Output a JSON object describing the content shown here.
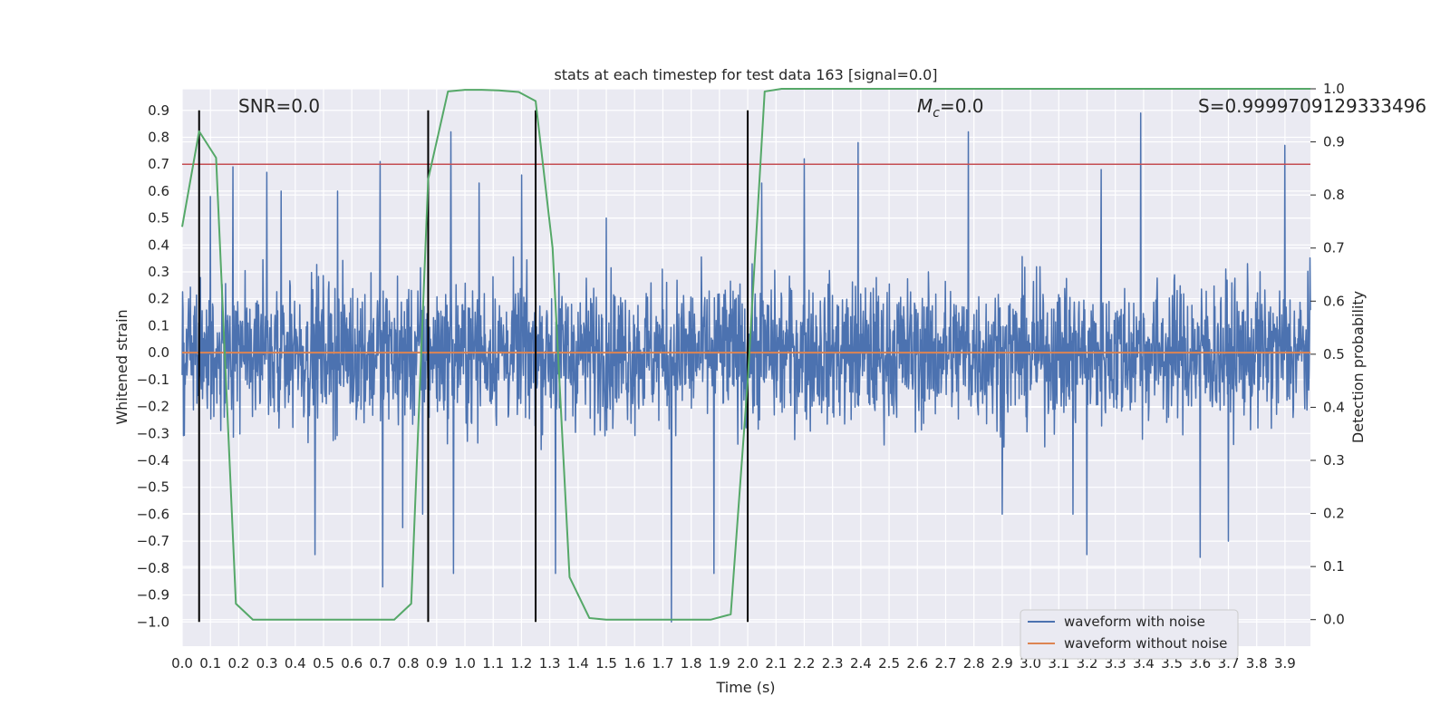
{
  "chart_data": {
    "type": "line",
    "title": "stats at each timestep for test data 163 [signal=0.0]",
    "xlabel": "Time (s)",
    "ylabel_left": "Whitened strain",
    "ylabel_right": "Detection probability",
    "xlim": [
      0.0,
      3.99
    ],
    "ylim_left": [
      -1.09,
      0.98
    ],
    "ylim_right": [
      -0.05,
      1.0
    ],
    "x_ticks": [
      "0.0",
      "0.1",
      "0.2",
      "0.3",
      "0.4",
      "0.5",
      "0.6",
      "0.7",
      "0.8",
      "0.9",
      "1.0",
      "1.1",
      "1.2",
      "1.3",
      "1.4",
      "1.5",
      "1.6",
      "1.7",
      "1.8",
      "1.9",
      "2.0",
      "2.1",
      "2.2",
      "2.3",
      "2.4",
      "2.5",
      "2.6",
      "2.7",
      "2.8",
      "2.9",
      "3.0",
      "3.1",
      "3.2",
      "3.3",
      "3.4",
      "3.5",
      "3.6",
      "3.7",
      "3.8",
      "3.9"
    ],
    "y_left_ticks": [
      "−1.0",
      "−0.9",
      "−0.8",
      "−0.7",
      "−0.6",
      "−0.5",
      "−0.4",
      "−0.3",
      "−0.2",
      "−0.1",
      "0.0",
      "0.1",
      "0.2",
      "0.3",
      "0.4",
      "0.5",
      "0.6",
      "0.7",
      "0.8",
      "0.9"
    ],
    "y_right_ticks": [
      "0.0",
      "0.1",
      "0.2",
      "0.3",
      "0.4",
      "0.5",
      "0.6",
      "0.7",
      "0.8",
      "0.9",
      "1.0"
    ],
    "grid": true,
    "legend_placement": "lower-right",
    "threshold_line_left": 0.7,
    "vertical_markers": [
      0.06,
      0.87,
      1.25,
      2.0
    ],
    "annotations": {
      "snr": "SNR=0.0",
      "mc_symbol": "M",
      "mc_sub": "c",
      "mc_value": "=0.0",
      "s": "S=0.9999709129333496"
    },
    "series": [
      {
        "name": "waveform with noise",
        "axis": "left",
        "color": "#4c72b0",
        "style": "noise",
        "amplitude_typical": 0.13,
        "spikes": [
          [
            0.1,
            0.58
          ],
          [
            0.18,
            0.69
          ],
          [
            0.3,
            0.67
          ],
          [
            0.35,
            0.6
          ],
          [
            0.47,
            -0.75
          ],
          [
            0.55,
            0.6
          ],
          [
            0.7,
            0.71
          ],
          [
            0.71,
            -0.87
          ],
          [
            0.78,
            -0.65
          ],
          [
            0.85,
            -0.6
          ],
          [
            0.95,
            0.82
          ],
          [
            0.96,
            -0.82
          ],
          [
            1.05,
            0.63
          ],
          [
            1.2,
            0.66
          ],
          [
            1.32,
            -0.82
          ],
          [
            1.5,
            0.5
          ],
          [
            1.73,
            -1.0
          ],
          [
            1.88,
            -0.82
          ],
          [
            2.05,
            0.63
          ],
          [
            2.2,
            0.72
          ],
          [
            2.39,
            0.78
          ],
          [
            2.78,
            0.82
          ],
          [
            2.9,
            -0.6
          ],
          [
            3.15,
            -0.6
          ],
          [
            3.2,
            -0.75
          ],
          [
            3.25,
            0.68
          ],
          [
            3.39,
            0.89
          ],
          [
            3.6,
            -0.76
          ],
          [
            3.7,
            -0.7
          ],
          [
            3.9,
            0.77
          ]
        ]
      },
      {
        "name": "waveform without noise",
        "axis": "left",
        "color": "#dd8452",
        "x": [
          0.0,
          3.99
        ],
        "y": [
          0.0,
          0.0
        ]
      },
      {
        "name": "detection probability",
        "axis": "right",
        "color": "#55a868",
        "x": [
          0.0,
          0.06,
          0.12,
          0.19,
          0.25,
          0.31,
          0.37,
          0.44,
          0.5,
          0.56,
          0.62,
          0.69,
          0.75,
          0.81,
          0.87,
          0.94,
          1.0,
          1.06,
          1.12,
          1.19,
          1.25,
          1.31,
          1.37,
          1.44,
          1.5,
          1.56,
          1.62,
          1.69,
          1.75,
          1.81,
          1.87,
          1.94,
          2.0,
          2.06,
          2.12,
          2.19,
          2.25,
          2.31,
          2.37,
          2.44,
          2.5,
          2.56,
          2.62,
          2.69,
          2.75,
          2.81,
          2.87,
          2.94,
          3.0,
          3.06,
          3.12,
          3.19,
          3.25,
          3.31,
          3.37,
          3.44,
          3.5,
          3.56,
          3.62,
          3.69,
          3.75,
          3.81,
          3.87,
          3.94,
          3.99
        ],
        "y": [
          0.74,
          0.92,
          0.87,
          0.03,
          0.0,
          0.0,
          0.0,
          0.0,
          0.0,
          0.0,
          0.0,
          0.0,
          0.0,
          0.03,
          0.83,
          0.995,
          0.998,
          0.998,
          0.997,
          0.994,
          0.977,
          0.7,
          0.08,
          0.003,
          0.0,
          0.0,
          0.0,
          0.0,
          0.0,
          0.0,
          0.0,
          0.01,
          0.45,
          0.995,
          1.0,
          1.0,
          1.0,
          1.0,
          1.0,
          1.0,
          1.0,
          1.0,
          1.0,
          1.0,
          1.0,
          1.0,
          1.0,
          1.0,
          1.0,
          1.0,
          1.0,
          1.0,
          1.0,
          1.0,
          1.0,
          1.0,
          1.0,
          1.0,
          1.0,
          1.0,
          1.0,
          1.0,
          1.0,
          1.0,
          1.0
        ]
      }
    ]
  }
}
